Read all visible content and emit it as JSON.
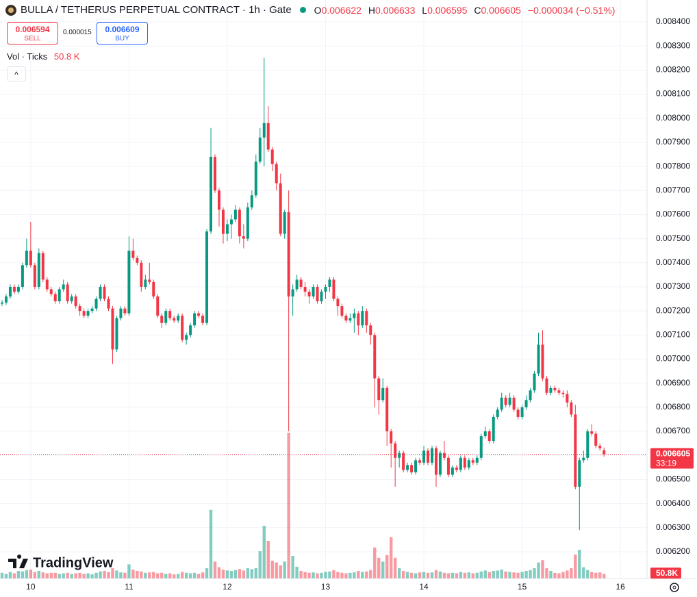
{
  "header": {
    "title": "BULLA / TETHERUS PERPETUAL CONTRACT · 1h · Gate",
    "ohlc_labels": [
      "O",
      "H",
      "L",
      "C"
    ],
    "change": "−0.000034 (−0.51%)",
    "sell": {
      "price": 0.006594,
      "label": "SELL"
    },
    "spread": 1.5e-05,
    "buy": {
      "price": 0.006609,
      "label": "BUY"
    },
    "indicator": {
      "name": "Vol · Ticks",
      "value": "50.8 K"
    },
    "logo": "TradingView"
  },
  "chart_data": {
    "type": "candlestick",
    "up_color": "#089981",
    "down_color": "#f23645",
    "grid": true,
    "countdown": "33:19",
    "volume_label": "50.8K",
    "xlim": [
      -0.5,
      157.5
    ],
    "xticks": [
      {
        "value": 7,
        "label": "10"
      },
      {
        "value": 31,
        "label": "11"
      },
      {
        "value": 55,
        "label": "12"
      },
      {
        "value": 79,
        "label": "13"
      },
      {
        "value": 103,
        "label": "14"
      },
      {
        "value": 127,
        "label": "15"
      },
      {
        "value": 151,
        "label": "16"
      }
    ],
    "ylim": [
      0.006089,
      0.008491
    ],
    "yticks": [
      {
        "value": 0.0062,
        "label": "0.006200"
      },
      {
        "value": 0.0063,
        "label": "0.006300"
      },
      {
        "value": 0.0064,
        "label": "0.006400"
      },
      {
        "value": 0.0065,
        "label": "0.006500"
      },
      {
        "value": 0.0066,
        "label": "0.006600"
      },
      {
        "value": 0.0067,
        "label": "0.006700"
      },
      {
        "value": 0.0068,
        "label": "0.006800"
      },
      {
        "value": 0.0069,
        "label": "0.006900"
      },
      {
        "value": 0.007,
        "label": "0.007000"
      },
      {
        "value": 0.0071,
        "label": "0.007100"
      },
      {
        "value": 0.0072,
        "label": "0.007200"
      },
      {
        "value": 0.0073,
        "label": "0.007300"
      },
      {
        "value": 0.0074,
        "label": "0.007400"
      },
      {
        "value": 0.0075,
        "label": "0.007500"
      },
      {
        "value": 0.0076,
        "label": "0.007600"
      },
      {
        "value": 0.0077,
        "label": "0.007700"
      },
      {
        "value": 0.0078,
        "label": "0.007800"
      },
      {
        "value": 0.0079,
        "label": "0.007900"
      },
      {
        "value": 0.008,
        "label": "0.008000"
      },
      {
        "value": 0.0081,
        "label": "0.008100"
      },
      {
        "value": 0.0082,
        "label": "0.008200"
      },
      {
        "value": 0.0083,
        "label": "0.008300"
      },
      {
        "value": 0.0084,
        "label": "0.008400"
      }
    ],
    "open": [
      0.00723,
      0.007235,
      0.00726,
      0.0073,
      0.00728,
      0.0073,
      0.00739,
      0.00745,
      0.00739,
      0.0073,
      0.00744,
      0.00733,
      0.00729,
      0.00727,
      0.00724,
      0.00729,
      0.00731,
      0.00724,
      0.00726,
      0.00722,
      0.0072,
      0.00718,
      0.0072,
      0.00721,
      0.00725,
      0.0073,
      0.00725,
      0.00721,
      0.00704,
      0.00717,
      0.00721,
      0.00719,
      0.00745,
      0.00742,
      0.0074,
      0.0073,
      0.00733,
      0.00732,
      0.00726,
      0.00718,
      0.00715,
      0.0072,
      0.00717,
      0.00716,
      0.00718,
      0.00708,
      0.0071,
      0.00714,
      0.00719,
      0.00718,
      0.00715,
      0.00753,
      0.00784,
      0.0077,
      0.00762,
      0.00752,
      0.00756,
      0.00758,
      0.00762,
      0.00751,
      0.0075,
      0.00763,
      0.00768,
      0.00782,
      0.00792,
      0.00798,
      0.00787,
      0.00781,
      0.00773,
      0.00752,
      0.00761,
      0.00726,
      0.00729,
      0.00733,
      0.0073,
      0.00728,
      0.00726,
      0.0073,
      0.00724,
      0.00728,
      0.0073,
      0.00733,
      0.00725,
      0.00722,
      0.00718,
      0.00716,
      0.00717,
      0.00719,
      0.00714,
      0.0072,
      0.00714,
      0.0071,
      0.00692,
      0.00683,
      0.00688,
      0.0067,
      0.00665,
      0.00659,
      0.00661,
      0.00654,
      0.00656,
      0.00653,
      0.00658,
      0.00657,
      0.00662,
      0.00657,
      0.00663,
      0.00652,
      0.00661,
      0.00659,
      0.00652,
      0.00655,
      0.00654,
      0.00659,
      0.00655,
      0.00658,
      0.00657,
      0.00659,
      0.00668,
      0.0067,
      0.00666,
      0.00676,
      0.00679,
      0.00684,
      0.00681,
      0.00684,
      0.00679,
      0.00676,
      0.0068,
      0.00683,
      0.00687,
      0.00694,
      0.00706,
      0.00692,
      0.00686,
      0.00688,
      0.00687,
      0.00686,
      0.006855,
      0.00682,
      0.00677,
      0.00647,
      0.00658,
      0.00659,
      0.0067,
      0.00669,
      0.00664,
      0.006622
    ],
    "high": [
      0.007245,
      0.00727,
      0.00731,
      0.00731,
      0.00731,
      0.0074,
      0.0075,
      0.00757,
      0.0074,
      0.00746,
      0.00745,
      0.00734,
      0.0073,
      0.00728,
      0.0073,
      0.00733,
      0.00732,
      0.00727,
      0.00727,
      0.00723,
      0.00721,
      0.00721,
      0.00722,
      0.00726,
      0.00731,
      0.00731,
      0.00726,
      0.00722,
      0.00718,
      0.00722,
      0.00722,
      0.00751,
      0.0075,
      0.00743,
      0.00741,
      0.00735,
      0.0074,
      0.00733,
      0.00727,
      0.00719,
      0.00721,
      0.00721,
      0.00718,
      0.00719,
      0.00719,
      0.00711,
      0.00715,
      0.0072,
      0.0072,
      0.00719,
      0.00754,
      0.00796,
      0.00785,
      0.00771,
      0.00763,
      0.00758,
      0.0076,
      0.00764,
      0.00763,
      0.00756,
      0.00765,
      0.0077,
      0.00785,
      0.00796,
      0.00825,
      0.00805,
      0.00788,
      0.00782,
      0.00777,
      0.00762,
      0.0077,
      0.00731,
      0.00735,
      0.00734,
      0.00732,
      0.00729,
      0.00731,
      0.00731,
      0.00729,
      0.00731,
      0.00734,
      0.00734,
      0.00726,
      0.00723,
      0.00719,
      0.00719,
      0.00721,
      0.0072,
      0.00722,
      0.00721,
      0.00715,
      0.00711,
      0.00693,
      0.00692,
      0.00689,
      0.00671,
      0.00666,
      0.00662,
      0.00662,
      0.00657,
      0.00657,
      0.00659,
      0.00659,
      0.00664,
      0.00663,
      0.00664,
      0.00664,
      0.00662,
      0.00666,
      0.0066,
      0.00656,
      0.00656,
      0.0066,
      0.0066,
      0.00659,
      0.00659,
      0.0066,
      0.00669,
      0.00672,
      0.00671,
      0.00677,
      0.0068,
      0.00686,
      0.00685,
      0.00686,
      0.00685,
      0.0068,
      0.00681,
      0.00685,
      0.00688,
      0.00695,
      0.00711,
      0.00712,
      0.00693,
      0.00689,
      0.00689,
      0.00688,
      0.00687,
      0.00687,
      0.00683,
      0.00681,
      0.00659,
      0.00662,
      0.00671,
      0.00673,
      0.0067,
      0.00665,
      0.006633
    ],
    "low": [
      0.00722,
      0.007225,
      0.00725,
      0.00727,
      0.00727,
      0.00729,
      0.00738,
      0.00738,
      0.00729,
      0.00729,
      0.00732,
      0.00728,
      0.00726,
      0.00723,
      0.00723,
      0.00728,
      0.00723,
      0.00723,
      0.00721,
      0.00718,
      0.00717,
      0.00717,
      0.00719,
      0.0072,
      0.00724,
      0.00724,
      0.0072,
      0.00698,
      0.00703,
      0.00716,
      0.00718,
      0.00718,
      0.00741,
      0.00739,
      0.00728,
      0.00729,
      0.00731,
      0.00725,
      0.00717,
      0.00713,
      0.00714,
      0.00716,
      0.00715,
      0.00715,
      0.00707,
      0.00706,
      0.00709,
      0.00713,
      0.00717,
      0.00714,
      0.00714,
      0.00752,
      0.00769,
      0.00755,
      0.00748,
      0.00749,
      0.0075,
      0.00757,
      0.00748,
      0.00746,
      0.00749,
      0.00762,
      0.00767,
      0.00781,
      0.0078,
      0.00786,
      0.00778,
      0.0077,
      0.00751,
      0.0075,
      0.0067,
      0.00718,
      0.00728,
      0.00729,
      0.00726,
      0.00723,
      0.00725,
      0.00723,
      0.00723,
      0.00725,
      0.00728,
      0.00724,
      0.00718,
      0.00717,
      0.00715,
      0.00715,
      0.00711,
      0.0071,
      0.00713,
      0.00711,
      0.00706,
      0.0068,
      0.00677,
      0.00682,
      0.00664,
      0.00655,
      0.00647,
      0.00655,
      0.00653,
      0.00653,
      0.00652,
      0.00652,
      0.00656,
      0.00656,
      0.00656,
      0.00656,
      0.00647,
      0.00651,
      0.00658,
      0.00651,
      0.00651,
      0.00653,
      0.00653,
      0.00654,
      0.00654,
      0.00656,
      0.00656,
      0.00658,
      0.00667,
      0.00665,
      0.00665,
      0.00675,
      0.00678,
      0.0068,
      0.0068,
      0.00678,
      0.00675,
      0.00675,
      0.00679,
      0.00682,
      0.00686,
      0.00693,
      0.00691,
      0.00685,
      0.00685,
      0.00686,
      0.00685,
      0.00684,
      0.0068,
      0.00676,
      0.00646,
      0.00629,
      0.00657,
      0.00658,
      0.00668,
      0.00663,
      0.00662,
      0.006595
    ],
    "close": [
      0.007235,
      0.00726,
      0.0073,
      0.00728,
      0.0073,
      0.00739,
      0.00745,
      0.00739,
      0.0073,
      0.00744,
      0.00733,
      0.00729,
      0.00727,
      0.00724,
      0.00729,
      0.00731,
      0.00724,
      0.00726,
      0.00722,
      0.0072,
      0.00718,
      0.0072,
      0.00721,
      0.00725,
      0.0073,
      0.00725,
      0.00721,
      0.00704,
      0.00717,
      0.00721,
      0.00719,
      0.00745,
      0.00742,
      0.0074,
      0.0073,
      0.00733,
      0.00732,
      0.00726,
      0.00718,
      0.00715,
      0.0072,
      0.00717,
      0.00716,
      0.00718,
      0.00708,
      0.0071,
      0.00714,
      0.00719,
      0.00718,
      0.00715,
      0.00753,
      0.00784,
      0.0077,
      0.00762,
      0.00752,
      0.00756,
      0.00758,
      0.00762,
      0.00751,
      0.0075,
      0.00763,
      0.00768,
      0.00782,
      0.00792,
      0.00798,
      0.00787,
      0.00781,
      0.00773,
      0.00752,
      0.00761,
      0.00726,
      0.00729,
      0.00733,
      0.0073,
      0.00728,
      0.00726,
      0.0073,
      0.00724,
      0.00728,
      0.0073,
      0.00733,
      0.00725,
      0.00722,
      0.00718,
      0.00716,
      0.00717,
      0.00719,
      0.00714,
      0.0072,
      0.00714,
      0.0071,
      0.00692,
      0.00683,
      0.00688,
      0.0067,
      0.00665,
      0.00659,
      0.00661,
      0.00654,
      0.00656,
      0.00653,
      0.00658,
      0.00657,
      0.00662,
      0.00657,
      0.00663,
      0.00652,
      0.00661,
      0.00659,
      0.00652,
      0.00655,
      0.00654,
      0.00659,
      0.00655,
      0.00658,
      0.00657,
      0.00659,
      0.00668,
      0.0067,
      0.00666,
      0.00676,
      0.00679,
      0.00684,
      0.00681,
      0.00684,
      0.00679,
      0.00676,
      0.0068,
      0.00683,
      0.00687,
      0.00694,
      0.00706,
      0.00692,
      0.00686,
      0.00688,
      0.00687,
      0.00686,
      0.006855,
      0.00682,
      0.00677,
      0.00647,
      0.00658,
      0.00659,
      0.0067,
      0.00669,
      0.00664,
      0.00663,
      0.006605
    ],
    "volume": [
      60,
      50,
      70,
      55,
      80,
      75,
      90,
      95,
      70,
      80,
      65,
      55,
      60,
      60,
      50,
      55,
      60,
      50,
      55,
      60,
      50,
      55,
      45,
      60,
      75,
      80,
      70,
      110,
      85,
      65,
      60,
      150,
      95,
      80,
      75,
      60,
      65,
      70,
      55,
      60,
      50,
      55,
      45,
      50,
      70,
      60,
      55,
      60,
      50,
      65,
      110,
      730,
      180,
      120,
      95,
      85,
      80,
      90,
      100,
      85,
      110,
      100,
      110,
      290,
      560,
      400,
      190,
      170,
      140,
      180,
      1550,
      240,
      125,
      80,
      70,
      60,
      65,
      55,
      60,
      70,
      75,
      90,
      70,
      60,
      55,
      60,
      65,
      80,
      70,
      75,
      90,
      330,
      220,
      180,
      250,
      440,
      220,
      110,
      80,
      70,
      60,
      55,
      65,
      70,
      60,
      65,
      90,
      75,
      60,
      55,
      60,
      55,
      70,
      60,
      65,
      55,
      60,
      75,
      85,
      70,
      80,
      85,
      95,
      75,
      70,
      65,
      60,
      70,
      80,
      90,
      110,
      170,
      195,
      110,
      80,
      60,
      55,
      70,
      85,
      110,
      255,
      305,
      120,
      90,
      70,
      60,
      65,
      50.8
    ]
  }
}
